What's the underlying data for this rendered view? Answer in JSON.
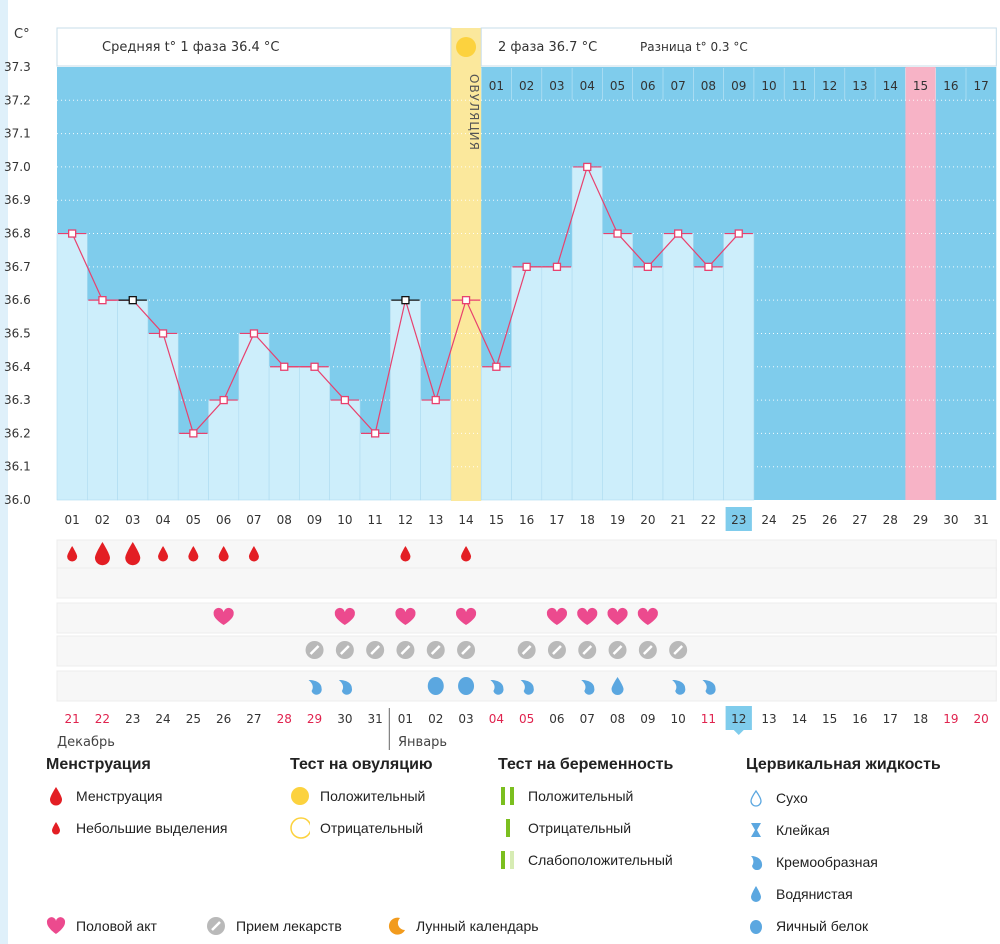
{
  "chart_data": {
    "type": "line",
    "title": "",
    "ylabel": "C°",
    "ylim": [
      36.0,
      37.3
    ],
    "y_ticks": [
      "36.0",
      "36.1",
      "36.2",
      "36.3",
      "36.4",
      "36.5",
      "36.6",
      "36.7",
      "36.8",
      "36.9",
      "37.0",
      "37.1",
      "37.2",
      "37.3"
    ],
    "cycle_days": [
      "01",
      "02",
      "03",
      "04",
      "05",
      "06",
      "07",
      "08",
      "09",
      "10",
      "11",
      "12",
      "13",
      "14",
      "15",
      "16",
      "17",
      "18",
      "19",
      "20",
      "21",
      "22",
      "23",
      "24",
      "25",
      "26",
      "27",
      "28",
      "29",
      "30",
      "31"
    ],
    "temperatures": [
      36.8,
      36.6,
      36.6,
      36.5,
      36.2,
      36.3,
      36.5,
      36.4,
      36.4,
      36.3,
      36.2,
      36.6,
      36.3,
      36.6,
      36.4,
      36.7,
      36.7,
      37.0,
      36.8,
      36.7,
      36.8,
      36.7,
      36.8
    ],
    "black_markers": [
      3,
      12
    ],
    "current_day": "23",
    "ovulation_day": 14,
    "ovulation_label": "ОВУЛЯЦИЯ",
    "phase1_text": "Средняя t° 1 фаза 36.4 °С",
    "phase2_text": "2 фаза 36.7 °С",
    "diff_text": "Разница t° 0.3 °С",
    "dpo_labels": [
      "01",
      "02",
      "03",
      "04",
      "05",
      "06",
      "07",
      "08",
      "09",
      "10",
      "11",
      "12",
      "13",
      "14",
      "15",
      "16",
      "17"
    ],
    "dpo_highlight": "15",
    "dates": [
      "21",
      "22",
      "23",
      "24",
      "25",
      "26",
      "27",
      "28",
      "29",
      "30",
      "31",
      "01",
      "02",
      "03",
      "04",
      "05",
      "06",
      "07",
      "08",
      "09",
      "10",
      "11",
      "12",
      "13",
      "14",
      "15",
      "16",
      "17",
      "18",
      "19",
      "20"
    ],
    "red_dates": [
      0,
      1,
      7,
      8,
      14,
      15,
      21,
      29,
      30
    ],
    "current_date": "12",
    "month1": "Декабрь",
    "month2": "Январь",
    "menstruation": [
      [
        1,
        "small"
      ],
      [
        2,
        "large"
      ],
      [
        3,
        "large"
      ],
      [
        4,
        "small"
      ],
      [
        5,
        "small"
      ],
      [
        6,
        "small"
      ],
      [
        7,
        "small"
      ],
      [
        12,
        "small"
      ],
      [
        14,
        "small"
      ]
    ],
    "intercourse": [
      6,
      10,
      12,
      14,
      17,
      18,
      19,
      20
    ],
    "medication": [
      9,
      10,
      11,
      12,
      13,
      14,
      16,
      17,
      18,
      19,
      20,
      21
    ],
    "cervical": [
      [
        9,
        "creamy"
      ],
      [
        10,
        "creamy"
      ],
      [
        13,
        "egg"
      ],
      [
        14,
        "egg"
      ],
      [
        15,
        "creamy"
      ],
      [
        16,
        "creamy"
      ],
      [
        18,
        "creamy"
      ],
      [
        19,
        "watery"
      ],
      [
        21,
        "creamy"
      ],
      [
        22,
        "creamy"
      ]
    ]
  },
  "colors": {
    "blue": "#7fccec",
    "bar": "#cdeefb",
    "ovulation": "#fbe89c",
    "pink": "#f7b3c6",
    "line": "#e8416e",
    "grid": "#c7dde9",
    "drop": "#e31e24",
    "heart": "#ec4a8e",
    "pill": "#b9b9b9",
    "cervical": "#5ba7e0",
    "sun": "#fcd23e",
    "test": "#7bbf1f"
  },
  "legend": {
    "menstruation": {
      "title": "Менструация",
      "items": [
        "Менструация",
        "Небольшие выделения"
      ]
    },
    "ovulation_test": {
      "title": "Тест на овуляцию",
      "items": [
        "Положительный",
        "Отрицательный"
      ]
    },
    "pregnancy_test": {
      "title": "Тест на беременность",
      "items": [
        "Положительный",
        "Отрицательный",
        "Слабоположительный"
      ]
    },
    "cervical": {
      "title": "Цервикальная жидкость",
      "items": [
        "Сухо",
        "Клейкая",
        "Кремообразная",
        "Водянистая",
        "Яичный белок"
      ]
    },
    "other": [
      "Половой акт",
      "Прием лекарств",
      "Лунный календарь"
    ]
  }
}
